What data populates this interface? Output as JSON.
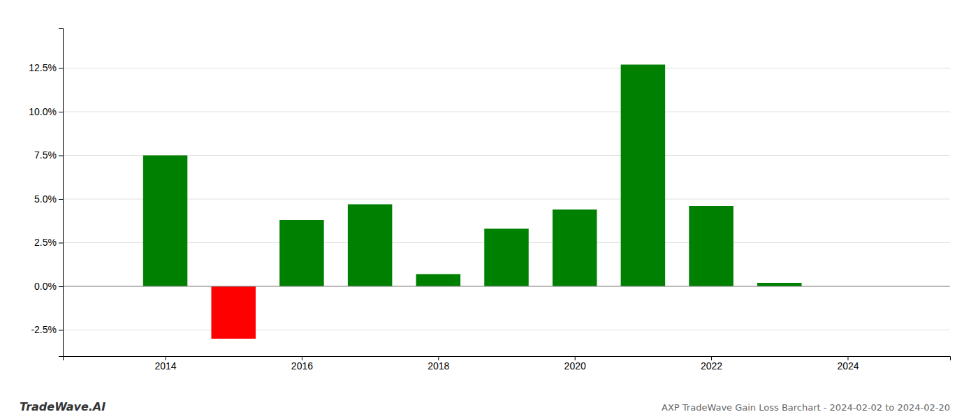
{
  "chart_data": {
    "type": "bar",
    "title": "AXP TradeWave Gain Loss Barchart - 2024-02-02 to 2024-02-20",
    "annotations": [
      "TradeWave.AI"
    ],
    "x": [
      2014,
      2015,
      2016,
      2017,
      2018,
      2019,
      2020,
      2021,
      2022,
      2023
    ],
    "values": [
      0.075,
      -0.03,
      0.038,
      0.047,
      0.007,
      0.033,
      0.044,
      0.127,
      0.046,
      0.002
    ],
    "colors": [
      "#008000",
      "#ff0000",
      "#008000",
      "#008000",
      "#008000",
      "#008000",
      "#008000",
      "#008000",
      "#008000",
      "#008000"
    ],
    "xlim": [
      2012.5,
      2025.5
    ],
    "xticks": [
      2014,
      2016,
      2018,
      2020,
      2022,
      2024
    ],
    "ylim": [
      -0.04,
      0.148
    ],
    "yticks": [
      {
        "value": -0.025,
        "label": "-2.5%"
      },
      {
        "value": 0.0,
        "label": "0.0%"
      },
      {
        "value": 0.025,
        "label": "2.5%"
      },
      {
        "value": 0.05,
        "label": "5.0%"
      },
      {
        "value": 0.075,
        "label": "7.5%"
      },
      {
        "value": 0.1,
        "label": "10.0%"
      },
      {
        "value": 0.125,
        "label": "12.5%"
      }
    ],
    "grid": true
  }
}
